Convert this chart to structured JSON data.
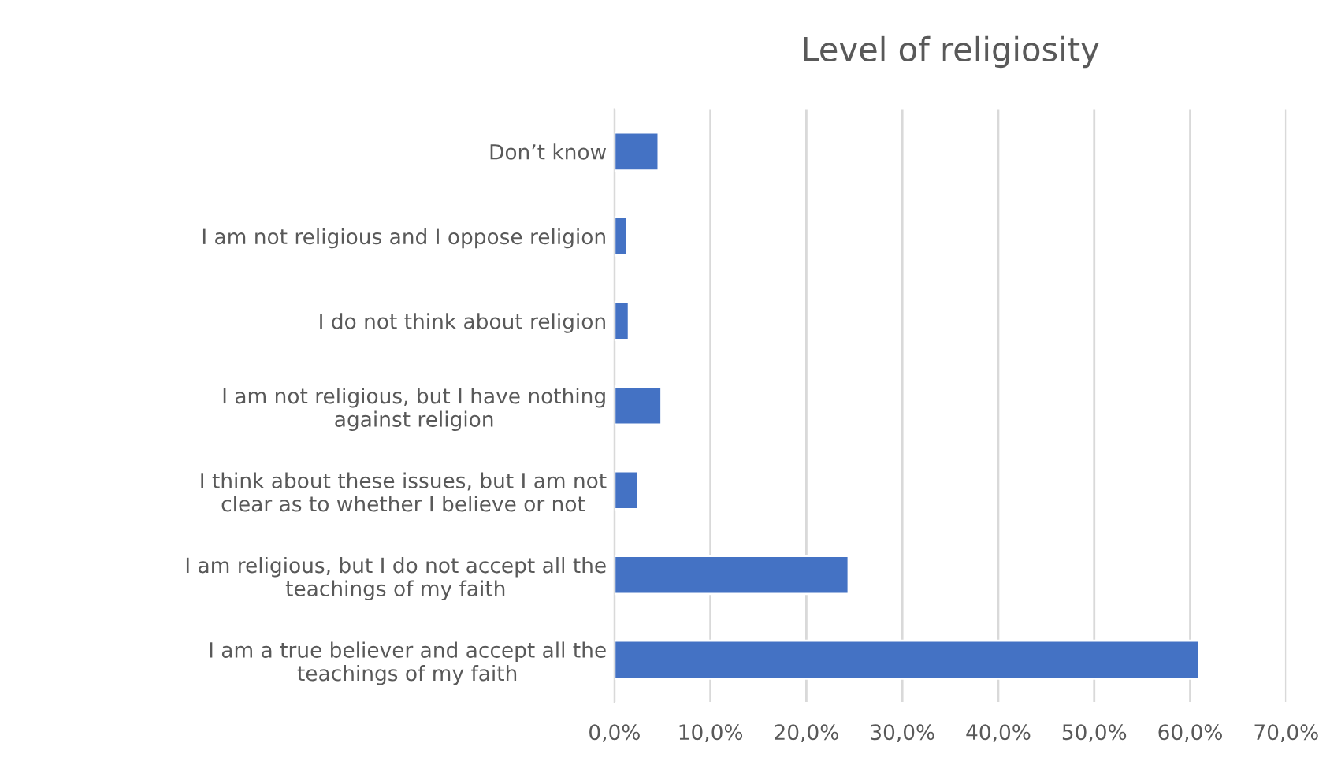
{
  "chart_data": {
    "type": "bar",
    "orientation": "horizontal",
    "title": "Level of religiosity",
    "categories": [
      "Don’t know",
      "I am not religious and I oppose religion",
      "I do not think about religion",
      "I am not religious, but I have nothing\nagainst religion",
      "I think about these issues, but I am not\nclear as to whether I believe or not",
      "I am religious, but I do not accept all the\nteachings of my faith",
      "I am a true believer and accept all the\nteachings of my faith"
    ],
    "values": [
      4.6,
      1.3,
      1.5,
      4.9,
      2.5,
      24.4,
      60.9
    ],
    "color": "#4472c4",
    "xlim": [
      0,
      70
    ],
    "xticks": [
      {
        "value": 0,
        "label": "0,0%"
      },
      {
        "value": 10,
        "label": "10,0%"
      },
      {
        "value": 20,
        "label": "20,0%"
      },
      {
        "value": 30,
        "label": "30,0%"
      },
      {
        "value": 40,
        "label": "40,0%"
      },
      {
        "value": 50,
        "label": "50,0%"
      },
      {
        "value": 60,
        "label": "60,0%"
      },
      {
        "value": 70,
        "label": "70,0%"
      }
    ],
    "grid": "x",
    "legend": false
  }
}
